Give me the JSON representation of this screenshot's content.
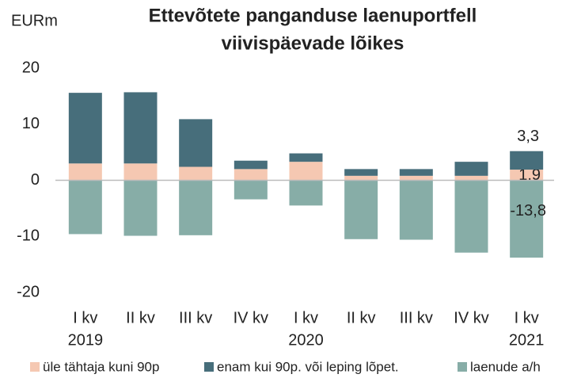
{
  "chart_data": {
    "type": "stacked_bar",
    "title": [
      "Ettevõtete panganduse laenuportfell",
      "viivispäevade lõikes"
    ],
    "y_label": "EURm",
    "categories": [
      "I kv",
      "II kv",
      "III kv",
      "IV kv",
      "I kv",
      "II kv",
      "III kv",
      "IV kv",
      "I kv"
    ],
    "years": [
      "2019",
      null,
      null,
      null,
      "2020",
      null,
      null,
      null,
      "2021"
    ],
    "series": [
      {
        "name": "üle tähtaja kuni 90p",
        "color": "#f5c8b2",
        "values": [
          3.0,
          3.0,
          2.4,
          2.0,
          3.3,
          0.8,
          0.8,
          0.8,
          1.9
        ],
        "value_labels": [
          null,
          null,
          null,
          null,
          null,
          null,
          null,
          null,
          "1,9"
        ]
      },
      {
        "name": "enam kui 90p. või leping lõpet.",
        "color": "#476e7b",
        "values": [
          12.6,
          12.7,
          8.5,
          1.5,
          1.5,
          1.2,
          1.2,
          2.5,
          3.3
        ],
        "value_labels": [
          null,
          null,
          null,
          null,
          null,
          null,
          null,
          null,
          "3,3"
        ]
      },
      {
        "name": "laenude a/h",
        "color": "#87ada7",
        "values": [
          -9.6,
          -9.9,
          -9.8,
          -3.4,
          -4.5,
          -10.5,
          -10.6,
          -12.9,
          -13.8
        ],
        "value_labels": [
          null,
          null,
          null,
          null,
          null,
          null,
          null,
          null,
          "-13,8"
        ]
      }
    ],
    "ylim": [
      -20,
      20
    ],
    "yticks": [
      -20,
      -10,
      0,
      10,
      20
    ],
    "legend": "bottom"
  }
}
